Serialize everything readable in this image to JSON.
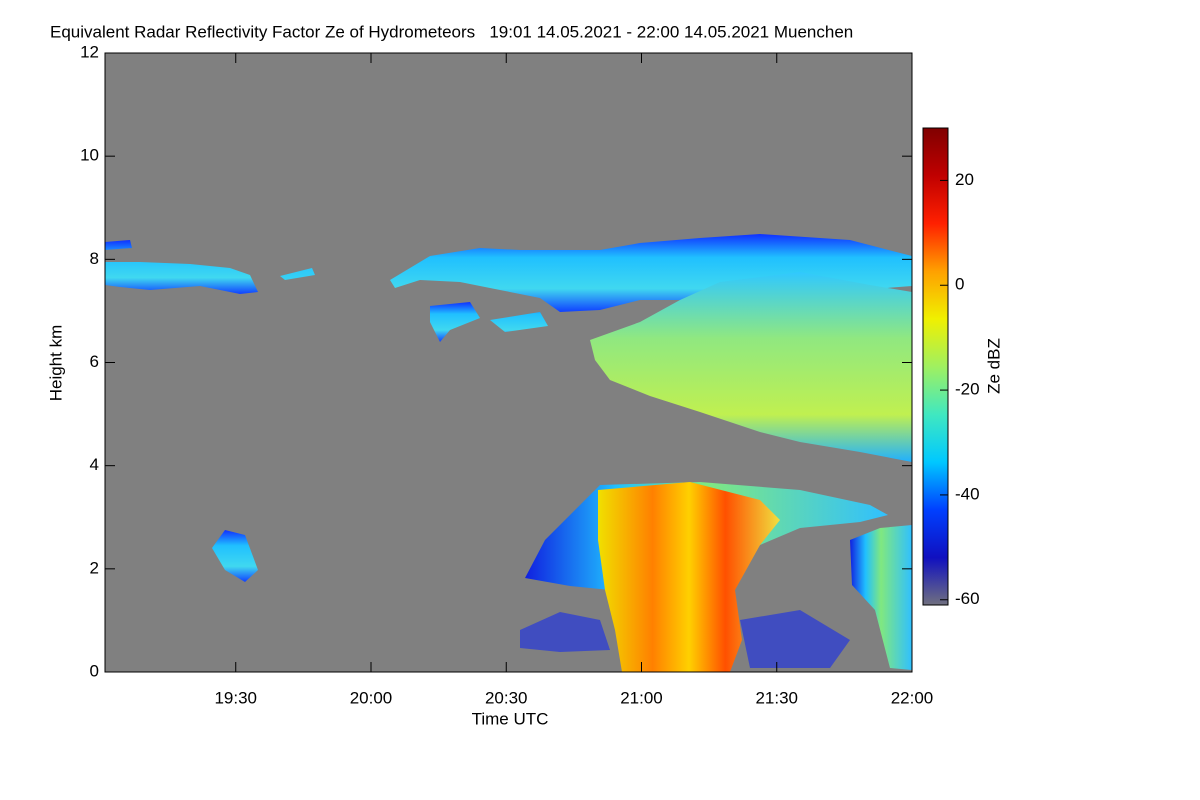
{
  "chart_data": {
    "type": "heatmap",
    "title": "Equivalent Radar Reflectivity Factor Ze of Hydrometeors   19:01 14.05.2021 - 22:00 14.05.2021 Muenchen",
    "xlabel": "Time UTC",
    "ylabel": "Height km",
    "xlim": [
      1141,
      1320
    ],
    "xticks": [
      {
        "value": 1170,
        "label": "19:30"
      },
      {
        "value": 1200,
        "label": "20:00"
      },
      {
        "value": 1230,
        "label": "20:30"
      },
      {
        "value": 1260,
        "label": "21:00"
      },
      {
        "value": 1290,
        "label": "21:30"
      },
      {
        "value": 1320,
        "label": "22:00"
      }
    ],
    "ylim": [
      0,
      12
    ],
    "yticks": [
      0,
      2,
      4,
      6,
      8,
      10,
      12
    ],
    "background": "#808080",
    "colorbar": {
      "label": "Ze dBZ",
      "lim": [
        -61,
        30
      ],
      "ticks": [
        20,
        0,
        -20,
        -40,
        -60
      ],
      "colormap": [
        "#707080",
        "#1010c0",
        "#0040ff",
        "#00c8ff",
        "#40e8c0",
        "#a0f060",
        "#f0f000",
        "#ffa000",
        "#ff2000",
        "#c00000",
        "#800000"
      ]
    }
  }
}
